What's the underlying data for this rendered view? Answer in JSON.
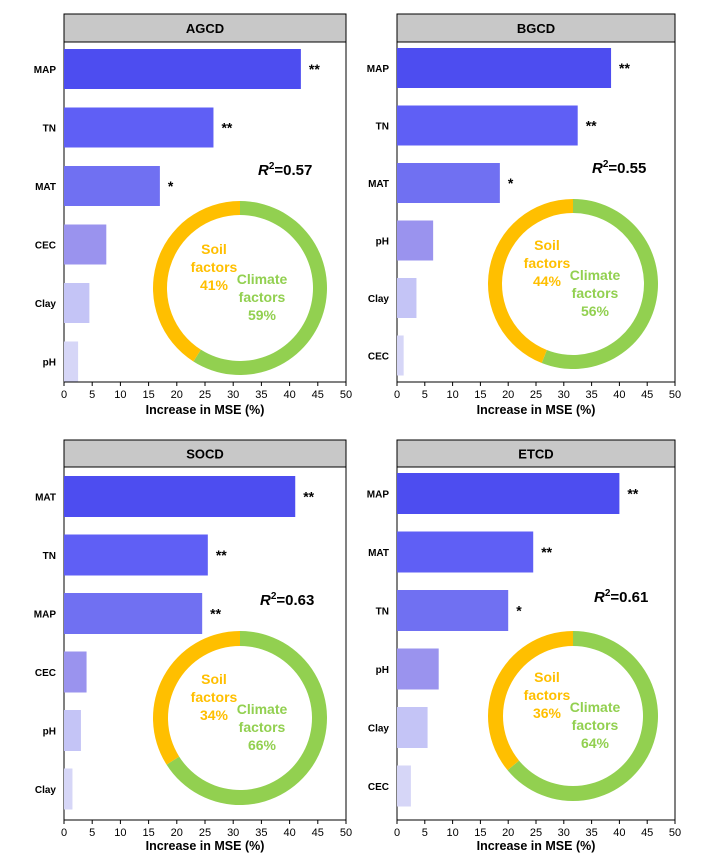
{
  "colors": {
    "axis": "#000000",
    "header_fill": "#c8c8c8",
    "soil": "#ffbf00",
    "climate": "#92d050",
    "bar_shades": [
      "#4d4df0",
      "#5f5ff5",
      "#7070f2",
      "#9a93ee",
      "#c4c4f6",
      "#d6d6f7"
    ]
  },
  "chart_data": [
    {
      "type": "bar",
      "orientation": "horizontal",
      "title": "AGCD",
      "xlabel": "Increase in MSE (%)",
      "xlim": [
        0,
        50
      ],
      "xticks": [
        0,
        5,
        10,
        15,
        20,
        25,
        30,
        35,
        40,
        45,
        50
      ],
      "categories": [
        "MAP",
        "TN",
        "MAT",
        "CEC",
        "Clay",
        "pH"
      ],
      "values": [
        42,
        26.5,
        17,
        7.5,
        4.5,
        2.5
      ],
      "significance": [
        "**",
        "**",
        "*",
        "",
        "",
        ""
      ],
      "r2_label": "R",
      "r2_sup": "2",
      "r2_value": "=0.57",
      "donut": {
        "slices": [
          {
            "label_1": "Soil",
            "label_2": "factors",
            "percent_label": "41%",
            "value": 41,
            "color": "#ffbf00"
          },
          {
            "label_1": "Climate",
            "label_2": "factors",
            "percent_label": "59%",
            "value": 59,
            "color": "#92d050"
          }
        ]
      }
    },
    {
      "type": "bar",
      "orientation": "horizontal",
      "title": "BGCD",
      "xlabel": "Increase in MSE (%)",
      "xlim": [
        0,
        50
      ],
      "xticks": [
        0,
        5,
        10,
        15,
        20,
        25,
        30,
        35,
        40,
        45,
        50
      ],
      "categories": [
        "MAP",
        "TN",
        "MAT",
        "pH",
        "Clay",
        "CEC"
      ],
      "values": [
        38.5,
        32.5,
        18.5,
        6.5,
        3.5,
        1.2
      ],
      "significance": [
        "**",
        "**",
        "*",
        "",
        "",
        ""
      ],
      "r2_label": "R",
      "r2_sup": "2",
      "r2_value": "=0.55",
      "donut": {
        "slices": [
          {
            "label_1": "Soil",
            "label_2": "factors",
            "percent_label": "44%",
            "value": 44,
            "color": "#ffbf00"
          },
          {
            "label_1": "Climate",
            "label_2": "factors",
            "percent_label": "56%",
            "value": 56,
            "color": "#92d050"
          }
        ]
      }
    },
    {
      "type": "bar",
      "orientation": "horizontal",
      "title": "SOCD",
      "xlabel": "Increase in MSE (%)",
      "xlim": [
        0,
        50
      ],
      "xticks": [
        0,
        5,
        10,
        15,
        20,
        25,
        30,
        35,
        40,
        45,
        50
      ],
      "categories": [
        "MAT",
        "TN",
        "MAP",
        "CEC",
        "pH",
        "Clay"
      ],
      "values": [
        41,
        25.5,
        24.5,
        4,
        3,
        1.5
      ],
      "significance": [
        "**",
        "**",
        "**",
        "",
        "",
        ""
      ],
      "r2_label": "R",
      "r2_sup": "2",
      "r2_value": "=0.63",
      "donut": {
        "slices": [
          {
            "label_1": "Soil",
            "label_2": "factors",
            "percent_label": "34%",
            "value": 34,
            "color": "#ffbf00"
          },
          {
            "label_1": "Climate",
            "label_2": "factors",
            "percent_label": "66%",
            "value": 66,
            "color": "#92d050"
          }
        ]
      }
    },
    {
      "type": "bar",
      "orientation": "horizontal",
      "title": "ETCD",
      "xlabel": "Increase in MSE (%)",
      "xlim": [
        0,
        50
      ],
      "xticks": [
        0,
        5,
        10,
        15,
        20,
        25,
        30,
        35,
        40,
        45,
        50
      ],
      "categories": [
        "MAP",
        "MAT",
        "TN",
        "pH",
        "Clay",
        "CEC"
      ],
      "values": [
        40,
        24.5,
        20,
        7.5,
        5.5,
        2.5
      ],
      "significance": [
        "**",
        "**",
        "*",
        "",
        "",
        ""
      ],
      "r2_label": "R",
      "r2_sup": "2",
      "r2_value": "=0.61",
      "donut": {
        "slices": [
          {
            "label_1": "Soil",
            "label_2": "factors",
            "percent_label": "36%",
            "value": 36,
            "color": "#ffbf00"
          },
          {
            "label_1": "Climate",
            "label_2": "factors",
            "percent_label": "64%",
            "value": 64,
            "color": "#92d050"
          }
        ]
      }
    }
  ]
}
